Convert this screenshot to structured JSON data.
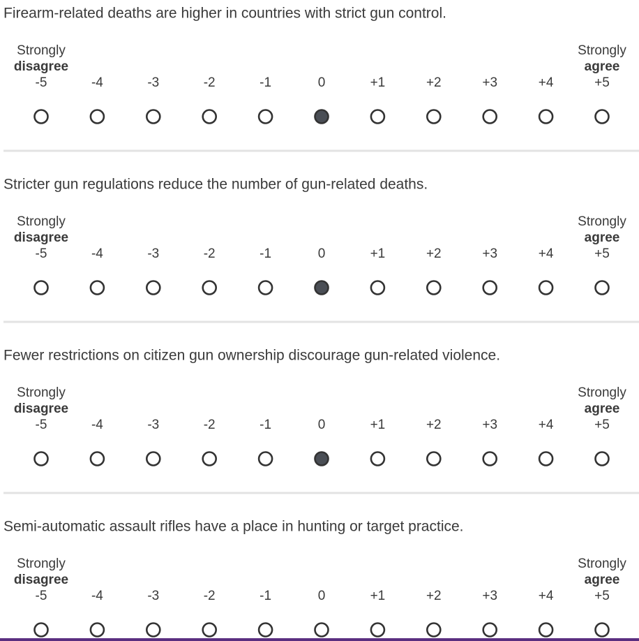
{
  "questions": [
    {
      "text": "Firearm-related deaths are higher in countries with strict gun control.",
      "selected": 5
    },
    {
      "text": "Stricter gun regulations reduce the number of gun-related deaths.",
      "selected": 5
    },
    {
      "text": "Fewer restrictions on citizen gun ownership discourage gun-related violence.",
      "selected": 5
    },
    {
      "text": "Semi-automatic assault rifles have a place in hunting or target practice.",
      "selected": null
    }
  ],
  "scale": {
    "left_top": "Strongly",
    "left_bottom": "disagree",
    "right_top": "Strongly",
    "right_bottom": "agree",
    "points": [
      "-5",
      "-4",
      "-3",
      "-2",
      "-1",
      "0",
      "+1",
      "+2",
      "+3",
      "+4",
      "+5"
    ]
  }
}
